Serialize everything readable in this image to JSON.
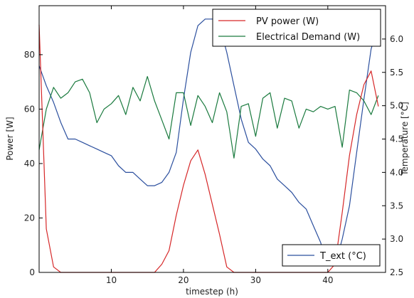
{
  "chart_data": {
    "type": "line",
    "xlabel": "timestep (h)",
    "ylabel": "Power [W]",
    "y2label": "Temperature [°C]",
    "xlim": [
      0,
      48
    ],
    "ylim": [
      0,
      98
    ],
    "y2lim": [
      2.5,
      6.5
    ],
    "xticks": [
      10,
      20,
      30,
      40
    ],
    "yticks": [
      0,
      20,
      40,
      60,
      80
    ],
    "y2ticks": [
      2.5,
      3.0,
      3.5,
      4.0,
      4.5,
      5.0,
      5.5,
      6.0
    ],
    "y2ticklabels": [
      "2.5",
      "3.0",
      "3.5",
      "4.0",
      "4.5",
      "5.0",
      "5.5",
      "6.0"
    ],
    "x": [
      0,
      1,
      2,
      3,
      4,
      5,
      6,
      7,
      8,
      9,
      10,
      11,
      12,
      13,
      14,
      15,
      16,
      17,
      18,
      19,
      20,
      21,
      22,
      23,
      24,
      25,
      26,
      27,
      28,
      29,
      30,
      31,
      32,
      33,
      34,
      35,
      36,
      37,
      38,
      39,
      40,
      41,
      42,
      43,
      44,
      45,
      46,
      47
    ],
    "series": [
      {
        "name": "PV power (W)",
        "axis": "left",
        "color": "#d62728",
        "values": [
          91,
          16,
          2,
          0,
          0,
          0,
          0,
          0,
          0,
          0,
          0,
          0,
          0,
          0,
          0,
          0,
          0,
          3,
          8,
          21,
          32,
          41,
          45,
          36,
          25,
          14,
          2,
          0,
          0,
          0,
          0,
          0,
          0,
          0,
          0,
          0,
          0,
          0,
          0,
          0,
          0,
          3,
          22,
          43,
          58,
          69,
          74,
          61
        ]
      },
      {
        "name": "Electrical Demand (W)",
        "axis": "left",
        "color": "#1a7a3e",
        "values": [
          45,
          60,
          68,
          64,
          66,
          70,
          71,
          66,
          55,
          60,
          62,
          65,
          58,
          68,
          63,
          72,
          63,
          56,
          49,
          66,
          66,
          54,
          65,
          61,
          55,
          66,
          59,
          42,
          61,
          62,
          50,
          64,
          66,
          53,
          64,
          63,
          53,
          60,
          59,
          61,
          60,
          61,
          46,
          67,
          66,
          63,
          58,
          65
        ]
      },
      {
        "name": "T_ext (°C)",
        "axis": "right",
        "color": "#2b4f9e",
        "values": [
          5.6,
          5.3,
          5.05,
          4.75,
          4.5,
          4.5,
          4.45,
          4.4,
          4.35,
          4.3,
          4.25,
          4.1,
          4.0,
          4.0,
          3.9,
          3.8,
          3.8,
          3.85,
          4.0,
          4.3,
          5.1,
          5.8,
          6.2,
          6.3,
          6.3,
          6.2,
          5.8,
          5.3,
          4.8,
          4.45,
          4.35,
          4.2,
          4.1,
          3.9,
          3.8,
          3.7,
          3.55,
          3.45,
          3.2,
          2.95,
          2.6,
          2.6,
          3.0,
          3.5,
          4.3,
          5.1,
          5.85,
          6.2
        ]
      }
    ],
    "legends": [
      {
        "position": "top-right",
        "entries": [
          "PV power (W)",
          "Electrical Demand (W)"
        ]
      },
      {
        "position": "bottom-right",
        "entries": [
          "T_ext (°C)"
        ]
      }
    ],
    "grid": false
  }
}
